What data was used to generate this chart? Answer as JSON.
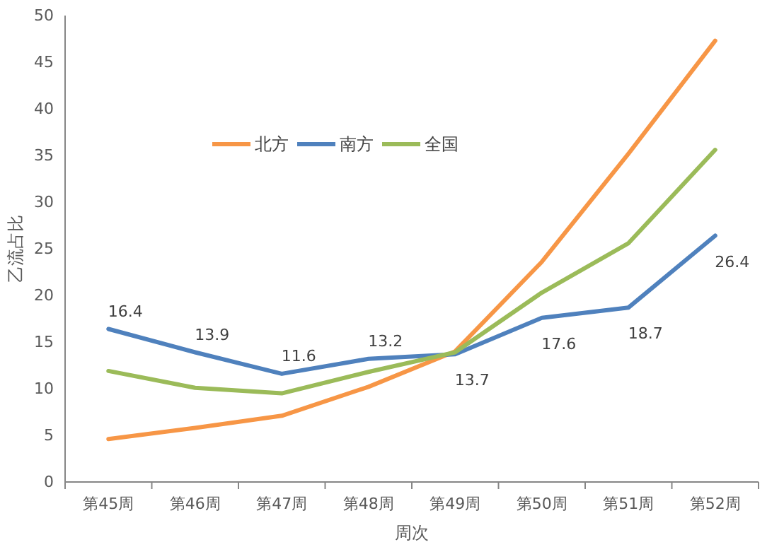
{
  "chart_data": {
    "type": "line",
    "xlabel": "周次",
    "ylabel": "乙流占比",
    "categories": [
      "第45周",
      "第46周",
      "第47周",
      "第48周",
      "第49周",
      "第50周",
      "第51周",
      "第52周"
    ],
    "series": [
      {
        "name": "北方",
        "color": "#f79646",
        "values": [
          4.6,
          5.8,
          7.1,
          10.2,
          14.0,
          23.6,
          35.2,
          47.3
        ]
      },
      {
        "name": "南方",
        "color": "#4f81bd",
        "values": [
          16.4,
          13.9,
          11.6,
          13.2,
          13.7,
          17.6,
          18.7,
          26.4
        ],
        "value_labels": [
          "16.4",
          "13.9",
          "11.6",
          "13.2",
          "13.7",
          "17.6",
          "18.7",
          "26.4"
        ]
      },
      {
        "name": "全国",
        "color": "#9bbb59",
        "values": [
          11.9,
          10.1,
          9.5,
          11.8,
          13.9,
          20.3,
          25.6,
          35.6
        ]
      }
    ],
    "ylim": [
      0,
      50
    ],
    "yticks": [
      0,
      5,
      10,
      15,
      20,
      25,
      30,
      35,
      40,
      45,
      50
    ],
    "legend": "top left",
    "marker": "none",
    "line_style": "solid"
  }
}
